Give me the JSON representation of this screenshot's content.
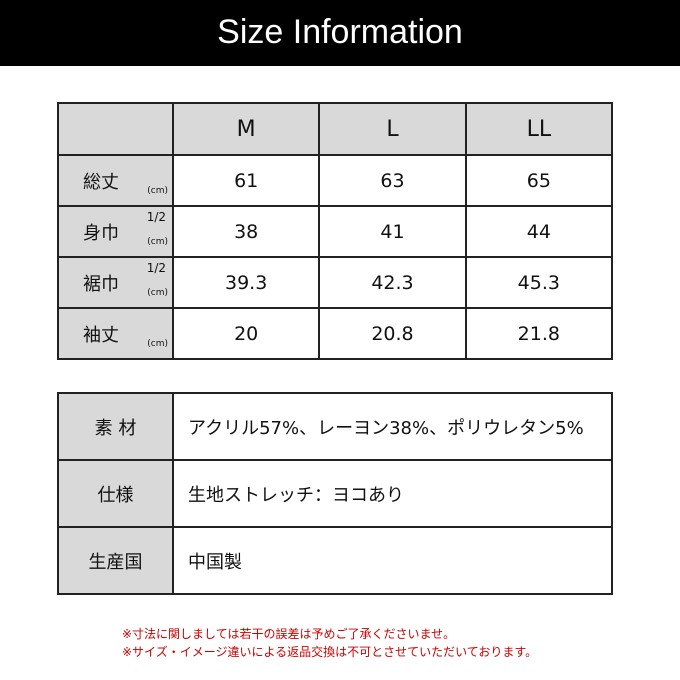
{
  "title": "Size Information",
  "size_table": {
    "columns": [
      "M",
      "L",
      "LL"
    ],
    "rows": [
      {
        "label": "総丈",
        "half": "",
        "unit": "(cm)",
        "values": [
          "61",
          "63",
          "65"
        ]
      },
      {
        "label": "身巾",
        "half": "1/2",
        "unit": "(cm)",
        "values": [
          "38",
          "41",
          "44"
        ]
      },
      {
        "label": "裾巾",
        "half": "1/2",
        "unit": "(cm)",
        "values": [
          "39.3",
          "42.3",
          "45.3"
        ]
      },
      {
        "label": "袖丈",
        "half": "",
        "unit": "(cm)",
        "values": [
          "20",
          "20.8",
          "21.8"
        ]
      }
    ]
  },
  "spec_table": [
    {
      "label": "素 材",
      "value": "アクリル57%、レーヨン38%、ポリウレタン5%"
    },
    {
      "label": "仕様",
      "value": "生地ストレッチ：ヨコあり"
    },
    {
      "label": "生産国",
      "value": "中国製"
    }
  ],
  "notes": [
    "※寸法に関しましては若干の誤差は予めご了承くださいませ。",
    "※サイズ・イメージ違いによる返品交換は不可とさせていただいております。"
  ],
  "colors": {
    "header_bg": "#000000",
    "label_bg": "#d9d9d9",
    "note": "#cc0000"
  }
}
